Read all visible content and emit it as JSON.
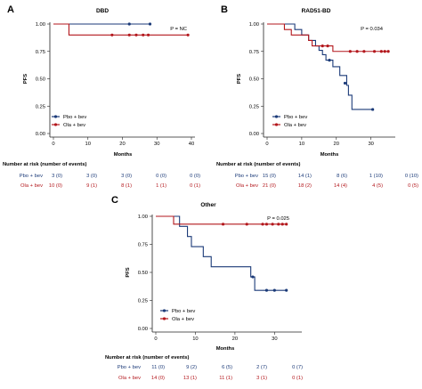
{
  "colors": {
    "pbo": "#1b3a78",
    "ola": "#b3171c",
    "axis": "#222222"
  },
  "panels": [
    {
      "id": "A",
      "letter": "A",
      "title": "DBD",
      "ylabel": "PFS",
      "xlabel": "Months",
      "pvalue": "P = NC",
      "legend": [
        "Pbo + bev",
        "Ola + bev"
      ],
      "risk_title": "Number at risk (number of events)",
      "risk": {
        "pbo_label": "Pbo + bev",
        "ola_label": "Ola + bev",
        "pbo": [
          "3 (0)",
          "3 (0)",
          "3 (0)",
          "0 (0)",
          "0 (0)"
        ],
        "ola": [
          "10 (0)",
          "9 (1)",
          "8 (1)",
          "1 (1)",
          "0 (1)"
        ]
      },
      "xticks": [
        "0",
        "10",
        "20",
        "30",
        "40"
      ],
      "yticks": [
        "0.00",
        "0.25",
        "0.50",
        "0.75",
        "1.00"
      ]
    },
    {
      "id": "B",
      "letter": "B",
      "title": "RAD51-BD",
      "ylabel": "PFS",
      "xlabel": "Months",
      "pvalue": "P = 0.034",
      "legend": [
        "Pbo + bev",
        "Ola + bev"
      ],
      "risk_title": "Number at risk (number of events)",
      "risk": {
        "pbo_label": "Pbo + bev",
        "ola_label": "Ola + bev",
        "pbo": [
          "15 (0)",
          "14 (1)",
          "8 (6)",
          "1 (10)",
          "0 (10)"
        ],
        "ola": [
          "21 (0)",
          "18 (2)",
          "14 (4)",
          "4 (5)",
          "0 (5)"
        ]
      },
      "xticks": [
        "0",
        "10",
        "20",
        "30"
      ],
      "yticks": [
        "0.00",
        "0.25",
        "0.50",
        "0.75",
        "1.00"
      ]
    },
    {
      "id": "C",
      "letter": "C",
      "title": "Other",
      "ylabel": "PFS",
      "xlabel": "Months",
      "pvalue": "P = 0.025",
      "legend": [
        "Pbo + bev",
        "Ola + bev"
      ],
      "risk_title": "Number at risk (number of events)",
      "risk": {
        "pbo_label": "Pbo + bev",
        "ola_label": "Ola + bev",
        "pbo": [
          "11 (0)",
          "9 (2)",
          "6 (5)",
          "2 (7)",
          "0 (7)"
        ],
        "ola": [
          "14 (0)",
          "13 (1)",
          "11 (1)",
          "3 (1)",
          "0 (1)"
        ]
      },
      "xticks": [
        "0",
        "10",
        "20",
        "30"
      ],
      "yticks": [
        "0.00",
        "0.25",
        "0.50",
        "0.75",
        "1.00"
      ]
    }
  ],
  "chart_data": [
    {
      "type": "line",
      "panel": "A",
      "title": "DBD",
      "xlabel": "Months",
      "ylabel": "PFS",
      "xlim": [
        0,
        40
      ],
      "ylim": [
        0,
        1
      ],
      "series": [
        {
          "name": "Pbo + bev",
          "steps": [
            [
              0,
              1.0
            ],
            [
              28,
              1.0
            ]
          ],
          "censor": [
            [
              22,
              1.0
            ],
            [
              28,
              1.0
            ]
          ]
        },
        {
          "name": "Ola + bev",
          "steps": [
            [
              0,
              1.0
            ],
            [
              4.5,
              1.0
            ],
            [
              4.5,
              0.9
            ],
            [
              39,
              0.9
            ]
          ],
          "censor": [
            [
              17,
              0.9
            ],
            [
              22,
              0.9
            ],
            [
              24,
              0.9
            ],
            [
              26,
              0.9
            ],
            [
              27.5,
              0.9
            ],
            [
              39,
              0.9
            ]
          ]
        }
      ]
    },
    {
      "type": "line",
      "panel": "B",
      "title": "RAD51-BD",
      "xlabel": "Months",
      "ylabel": "PFS",
      "xlim": [
        0,
        36
      ],
      "ylim": [
        0,
        1
      ],
      "series": [
        {
          "name": "Pbo + bev",
          "steps": [
            [
              0,
              1.0
            ],
            [
              8,
              1.0
            ],
            [
              8,
              0.95
            ],
            [
              10,
              0.95
            ],
            [
              10,
              0.9
            ],
            [
              12,
              0.9
            ],
            [
              12,
              0.85
            ],
            [
              14,
              0.85
            ],
            [
              14,
              0.8
            ],
            [
              15,
              0.8
            ],
            [
              15,
              0.76
            ],
            [
              16,
              0.76
            ],
            [
              16,
              0.72
            ],
            [
              17,
              0.72
            ],
            [
              17,
              0.67
            ],
            [
              19,
              0.67
            ],
            [
              19,
              0.61
            ],
            [
              21,
              0.61
            ],
            [
              21,
              0.53
            ],
            [
              23,
              0.53
            ],
            [
              23,
              0.44
            ],
            [
              23.5,
              0.44
            ],
            [
              23.5,
              0.35
            ],
            [
              24.5,
              0.35
            ],
            [
              24.5,
              0.22
            ],
            [
              30.5,
              0.22
            ]
          ],
          "censor": [
            [
              18,
              0.67
            ],
            [
              22.5,
              0.46
            ],
            [
              30.5,
              0.22
            ]
          ]
        },
        {
          "name": "Ola + bev",
          "steps": [
            [
              0,
              1.0
            ],
            [
              5,
              1.0
            ],
            [
              5,
              0.95
            ],
            [
              7,
              0.95
            ],
            [
              7,
              0.9
            ],
            [
              12,
              0.9
            ],
            [
              12,
              0.85
            ],
            [
              13,
              0.85
            ],
            [
              13,
              0.8
            ],
            [
              19,
              0.8
            ],
            [
              19,
              0.75
            ],
            [
              35,
              0.75
            ]
          ],
          "censor": [
            [
              16,
              0.8
            ],
            [
              17.5,
              0.8
            ],
            [
              24,
              0.75
            ],
            [
              26,
              0.75
            ],
            [
              28,
              0.75
            ],
            [
              31,
              0.75
            ],
            [
              33,
              0.75
            ],
            [
              34,
              0.75
            ],
            [
              35,
              0.75
            ]
          ]
        }
      ]
    },
    {
      "type": "line",
      "panel": "C",
      "title": "Other",
      "xlabel": "Months",
      "ylabel": "PFS",
      "xlim": [
        0,
        36
      ],
      "ylim": [
        0,
        1
      ],
      "series": [
        {
          "name": "Pbo + bev",
          "steps": [
            [
              0,
              1.0
            ],
            [
              6,
              1.0
            ],
            [
              6,
              0.91
            ],
            [
              8,
              0.91
            ],
            [
              8,
              0.82
            ],
            [
              9,
              0.82
            ],
            [
              9,
              0.73
            ],
            [
              12,
              0.73
            ],
            [
              12,
              0.64
            ],
            [
              14,
              0.64
            ],
            [
              14,
              0.55
            ],
            [
              24,
              0.55
            ],
            [
              24,
              0.46
            ],
            [
              25,
              0.46
            ],
            [
              25,
              0.34
            ],
            [
              33,
              0.34
            ]
          ],
          "censor": [
            [
              24.5,
              0.46
            ],
            [
              28,
              0.34
            ],
            [
              30,
              0.34
            ],
            [
              33,
              0.34
            ]
          ]
        },
        {
          "name": "Ola + bev",
          "steps": [
            [
              0,
              1.0
            ],
            [
              4.5,
              1.0
            ],
            [
              4.5,
              0.93
            ],
            [
              33,
              0.93
            ]
          ],
          "censor": [
            [
              17,
              0.93
            ],
            [
              23,
              0.93
            ],
            [
              27,
              0.93
            ],
            [
              28,
              0.93
            ],
            [
              29.5,
              0.93
            ],
            [
              31,
              0.93
            ],
            [
              32,
              0.93
            ],
            [
              33,
              0.93
            ]
          ]
        }
      ]
    }
  ]
}
